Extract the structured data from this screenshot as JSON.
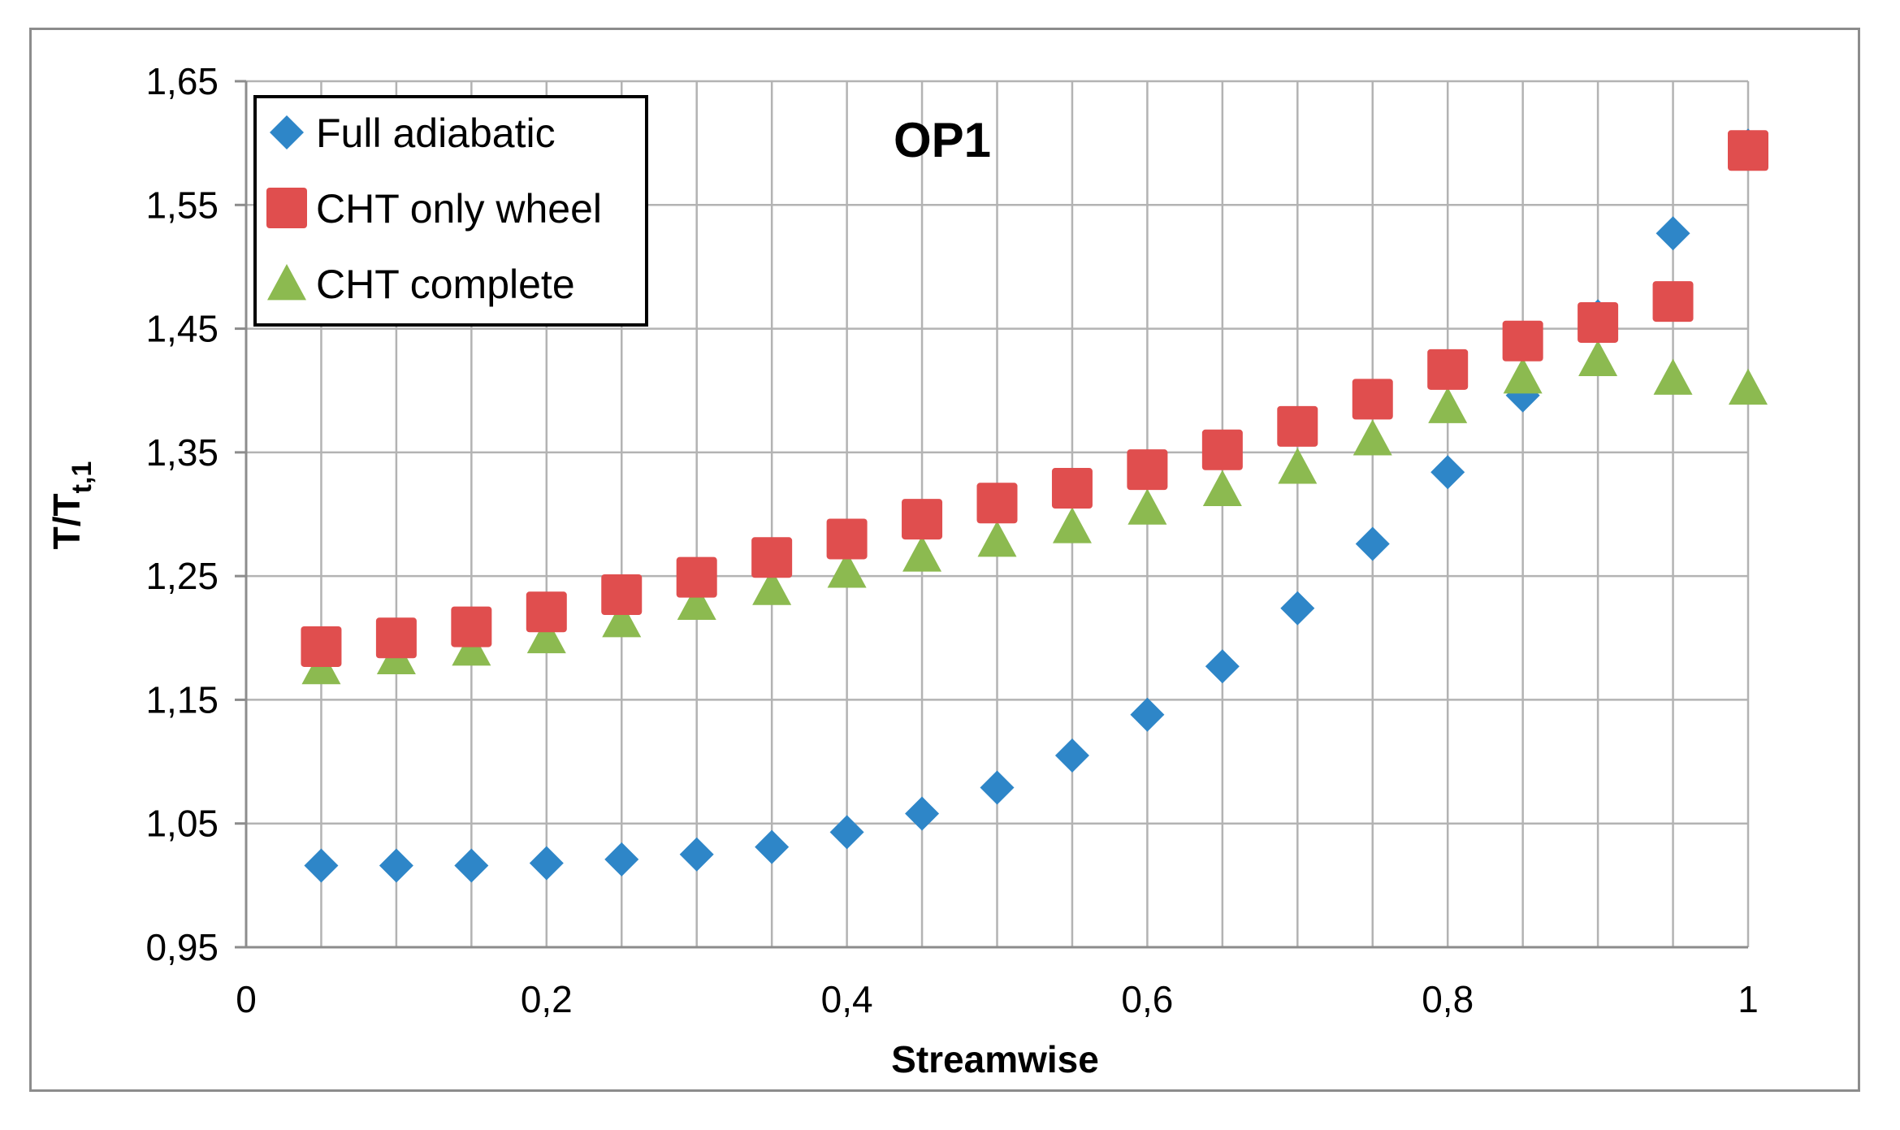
{
  "chart_data": {
    "type": "scatter",
    "title": "OP1",
    "xlabel": "Streamwise",
    "ylabel_main": "T/T",
    "ylabel_sub": "t,1",
    "xlim": [
      0,
      1
    ],
    "ylim": [
      0.95,
      1.65
    ],
    "x_ticks": [
      0,
      0.2,
      0.4,
      0.6,
      0.8,
      1
    ],
    "x_tick_labels": [
      "0",
      "0,2",
      "0,4",
      "0,6",
      "0,8",
      "1"
    ],
    "y_ticks": [
      0.95,
      1.05,
      1.15,
      1.25,
      1.35,
      1.45,
      1.55,
      1.65
    ],
    "y_tick_labels": [
      "0,95",
      "1,05",
      "1,15",
      "1,25",
      "1,35",
      "1,45",
      "1,55",
      "1,65"
    ],
    "x_minor_step": 0.05,
    "grid": true,
    "legend_position": "top-left",
    "series": [
      {
        "name": "Full adiabatic",
        "marker": "diamond",
        "color": "#2e86c8",
        "x": [
          0.05,
          0.1,
          0.15,
          0.2,
          0.25,
          0.3,
          0.35,
          0.4,
          0.45,
          0.5,
          0.55,
          0.6,
          0.65,
          0.7,
          0.75,
          0.8,
          0.85,
          0.9,
          0.95,
          1.0
        ],
        "y": [
          1.016,
          1.016,
          1.016,
          1.018,
          1.021,
          1.025,
          1.031,
          1.043,
          1.058,
          1.079,
          1.105,
          1.138,
          1.177,
          1.224,
          1.276,
          1.334,
          1.396,
          1.46,
          1.527,
          1.598
        ]
      },
      {
        "name": "CHT only wheel",
        "marker": "square",
        "color": "#e04e4e",
        "x": [
          0.05,
          0.1,
          0.15,
          0.2,
          0.25,
          0.3,
          0.35,
          0.4,
          0.45,
          0.5,
          0.55,
          0.6,
          0.65,
          0.7,
          0.75,
          0.8,
          0.85,
          0.9,
          0.95,
          1.0
        ],
        "y": [
          1.193,
          1.2,
          1.209,
          1.221,
          1.235,
          1.249,
          1.265,
          1.28,
          1.296,
          1.309,
          1.321,
          1.336,
          1.352,
          1.371,
          1.393,
          1.417,
          1.44,
          1.455,
          1.472,
          1.594
        ]
      },
      {
        "name": "CHT complete",
        "marker": "triangle",
        "color": "#8cba50",
        "x": [
          0.05,
          0.1,
          0.15,
          0.2,
          0.25,
          0.3,
          0.35,
          0.4,
          0.45,
          0.5,
          0.55,
          0.6,
          0.65,
          0.7,
          0.75,
          0.8,
          0.85,
          0.9,
          0.95,
          1.0
        ],
        "y": [
          1.176,
          1.184,
          1.191,
          1.201,
          1.214,
          1.228,
          1.24,
          1.254,
          1.267,
          1.279,
          1.29,
          1.305,
          1.32,
          1.338,
          1.361,
          1.387,
          1.411,
          1.425,
          1.41,
          1.402
        ]
      }
    ]
  }
}
